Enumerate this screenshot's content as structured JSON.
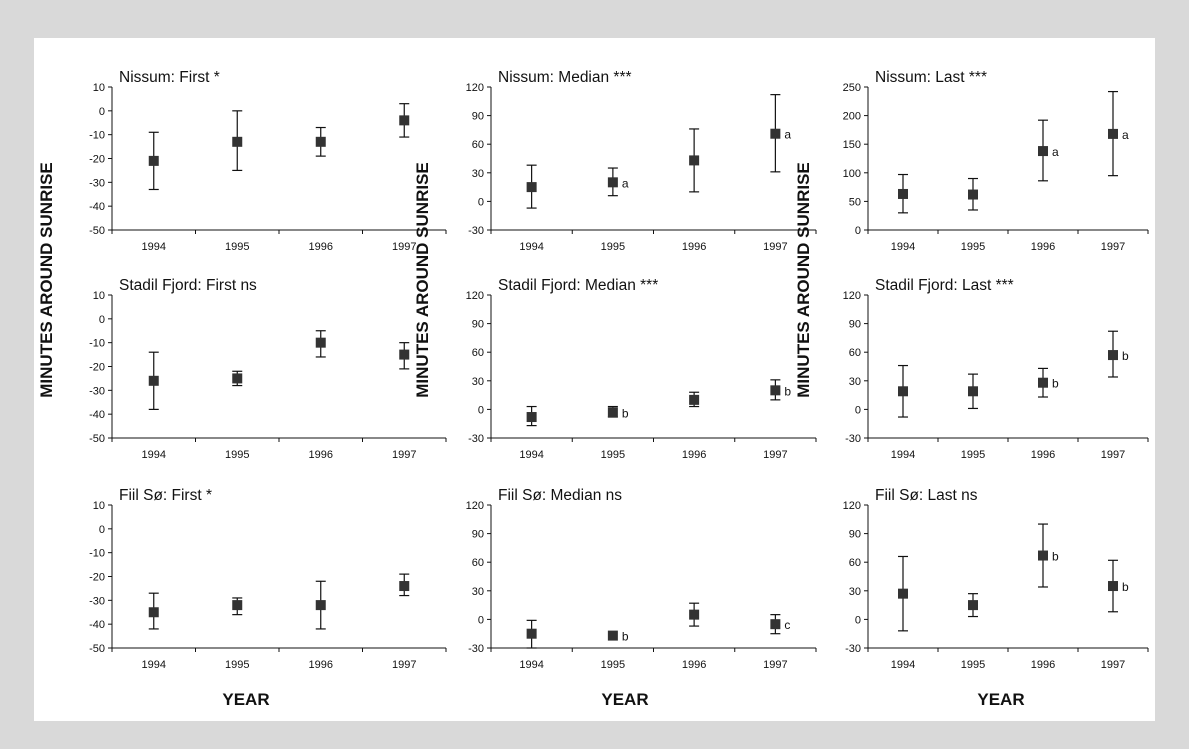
{
  "figure": {
    "y_axis_label": "MINUTES AROUND SUNRISE",
    "x_axis_label": "YEAR"
  },
  "chart_data": [
    {
      "type": "scatter",
      "title": "Nissum: First *",
      "categories": [
        "1994",
        "1995",
        "1996",
        "1997"
      ],
      "ylim": [
        -50,
        10
      ],
      "yticks": [
        10,
        0,
        -10,
        -20,
        -30,
        -40,
        -50
      ],
      "grid": false,
      "points": [
        {
          "x": "1994",
          "y": -21,
          "low": -33,
          "high": -9,
          "label": ""
        },
        {
          "x": "1995",
          "y": -13,
          "low": -25,
          "high": 0,
          "label": ""
        },
        {
          "x": "1996",
          "y": -13,
          "low": -19,
          "high": -7,
          "label": ""
        },
        {
          "x": "1997",
          "y": -4,
          "low": -11,
          "high": 3,
          "label": ""
        }
      ]
    },
    {
      "type": "scatter",
      "title": "Nissum: Median ***",
      "categories": [
        "1994",
        "1995",
        "1996",
        "1997"
      ],
      "ylim": [
        -30,
        120
      ],
      "yticks": [
        120,
        90,
        60,
        30,
        0,
        -30
      ],
      "grid": false,
      "points": [
        {
          "x": "1994",
          "y": 15,
          "low": -7,
          "high": 38,
          "label": ""
        },
        {
          "x": "1995",
          "y": 20,
          "low": 6,
          "high": 35,
          "label": "a"
        },
        {
          "x": "1996",
          "y": 43,
          "low": 10,
          "high": 76,
          "label": ""
        },
        {
          "x": "1997",
          "y": 71,
          "low": 31,
          "high": 112,
          "label": "a"
        }
      ]
    },
    {
      "type": "scatter",
      "title": "Nissum: Last ***",
      "categories": [
        "1994",
        "1995",
        "1996",
        "1997"
      ],
      "ylim": [
        0,
        250
      ],
      "yticks": [
        250,
        200,
        150,
        100,
        50,
        0
      ],
      "grid": false,
      "points": [
        {
          "x": "1994",
          "y": 63,
          "low": 30,
          "high": 97,
          "label": ""
        },
        {
          "x": "1995",
          "y": 62,
          "low": 35,
          "high": 90,
          "label": ""
        },
        {
          "x": "1996",
          "y": 138,
          "low": 86,
          "high": 192,
          "label": "a"
        },
        {
          "x": "1997",
          "y": 168,
          "low": 95,
          "high": 242,
          "label": "a"
        }
      ]
    },
    {
      "type": "scatter",
      "title": "Stadil Fjord: First ns",
      "categories": [
        "1994",
        "1995",
        "1996",
        "1997"
      ],
      "ylim": [
        -50,
        10
      ],
      "yticks": [
        10,
        0,
        -10,
        -20,
        -30,
        -40,
        -50
      ],
      "grid": false,
      "points": [
        {
          "x": "1994",
          "y": -26,
          "low": -38,
          "high": -14,
          "label": ""
        },
        {
          "x": "1995",
          "y": -25,
          "low": -28,
          "high": -22,
          "label": ""
        },
        {
          "x": "1996",
          "y": -10,
          "low": -16,
          "high": -5,
          "label": ""
        },
        {
          "x": "1997",
          "y": -15,
          "low": -21,
          "high": -10,
          "label": ""
        }
      ]
    },
    {
      "type": "scatter",
      "title": "Stadil Fjord: Median ***",
      "categories": [
        "1994",
        "1995",
        "1996",
        "1997"
      ],
      "ylim": [
        -30,
        120
      ],
      "yticks": [
        120,
        90,
        60,
        30,
        0,
        -30
      ],
      "grid": false,
      "points": [
        {
          "x": "1994",
          "y": -8,
          "low": -17,
          "high": 3,
          "label": ""
        },
        {
          "x": "1995",
          "y": -3,
          "low": -8,
          "high": 3,
          "label": "b"
        },
        {
          "x": "1996",
          "y": 10,
          "low": 3,
          "high": 18,
          "label": ""
        },
        {
          "x": "1997",
          "y": 20,
          "low": 10,
          "high": 31,
          "label": "b"
        }
      ]
    },
    {
      "type": "scatter",
      "title": "Stadil Fjord: Last ***",
      "categories": [
        "1994",
        "1995",
        "1996",
        "1997"
      ],
      "ylim": [
        -30,
        120
      ],
      "yticks": [
        120,
        90,
        60,
        30,
        0,
        -30
      ],
      "grid": false,
      "points": [
        {
          "x": "1994",
          "y": 19,
          "low": -8,
          "high": 46,
          "label": ""
        },
        {
          "x": "1995",
          "y": 19,
          "low": 1,
          "high": 37,
          "label": ""
        },
        {
          "x": "1996",
          "y": 28,
          "low": 13,
          "high": 43,
          "label": "b"
        },
        {
          "x": "1997",
          "y": 57,
          "low": 34,
          "high": 82,
          "label": "b"
        }
      ]
    },
    {
      "type": "scatter",
      "title": "Fiil Sø: First *",
      "categories": [
        "1994",
        "1995",
        "1996",
        "1997"
      ],
      "ylim": [
        -50,
        10
      ],
      "yticks": [
        10,
        0,
        -10,
        -20,
        -30,
        -40,
        -50
      ],
      "grid": false,
      "points": [
        {
          "x": "1994",
          "y": -35,
          "low": -42,
          "high": -27,
          "label": ""
        },
        {
          "x": "1995",
          "y": -32,
          "low": -36,
          "high": -29,
          "label": ""
        },
        {
          "x": "1996",
          "y": -32,
          "low": -42,
          "high": -22,
          "label": ""
        },
        {
          "x": "1997",
          "y": -24,
          "low": -28,
          "high": -19,
          "label": ""
        }
      ]
    },
    {
      "type": "scatter",
      "title": "Fiil Sø: Median ns",
      "categories": [
        "1994",
        "1995",
        "1996",
        "1997"
      ],
      "ylim": [
        -30,
        120
      ],
      "yticks": [
        120,
        90,
        60,
        30,
        0,
        -30
      ],
      "grid": false,
      "points": [
        {
          "x": "1994",
          "y": -15,
          "low": -30,
          "high": -1,
          "label": ""
        },
        {
          "x": "1995",
          "y": -17,
          "low": -17,
          "high": -17,
          "label": "b"
        },
        {
          "x": "1996",
          "y": 5,
          "low": -7,
          "high": 17,
          "label": ""
        },
        {
          "x": "1997",
          "y": -5,
          "low": -15,
          "high": 5,
          "label": "c"
        }
      ]
    },
    {
      "type": "scatter",
      "title": "Fiil Sø: Last ns",
      "categories": [
        "1994",
        "1995",
        "1996",
        "1997"
      ],
      "ylim": [
        -30,
        120
      ],
      "yticks": [
        120,
        90,
        60,
        30,
        0,
        -30
      ],
      "grid": false,
      "points": [
        {
          "x": "1994",
          "y": 27,
          "low": -12,
          "high": 66,
          "label": ""
        },
        {
          "x": "1995",
          "y": 15,
          "low": 3,
          "high": 27,
          "label": ""
        },
        {
          "x": "1996",
          "y": 67,
          "low": 34,
          "high": 100,
          "label": "b"
        },
        {
          "x": "1997",
          "y": 35,
          "low": 8,
          "high": 62,
          "label": "b"
        }
      ]
    }
  ]
}
